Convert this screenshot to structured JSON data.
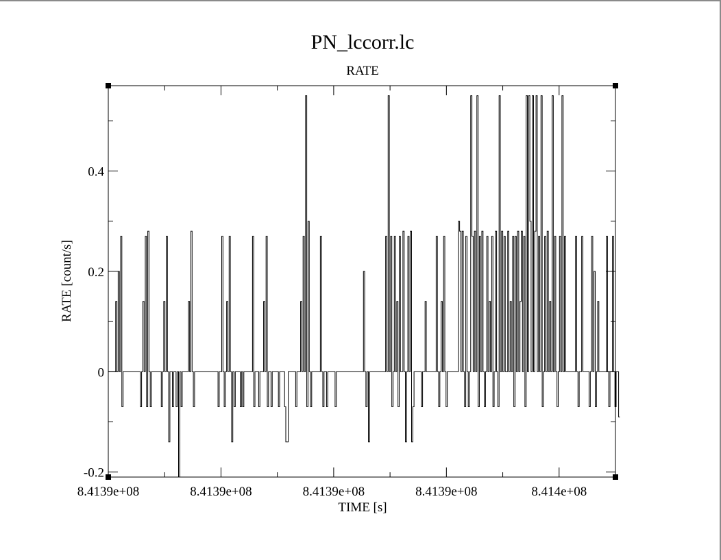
{
  "chart_data": {
    "type": "line",
    "title": "PN_lccorr.lc",
    "subtitle": "RATE",
    "xlabel": "TIME [s]",
    "ylabel": "RATE [count/s]",
    "xlim": [
      841390000,
      841404400
    ],
    "ylim": [
      -0.21,
      0.57
    ],
    "x_tick_values": [
      841390000,
      841393200,
      841396400,
      841399600,
      841402800
    ],
    "x_tick_labels": [
      "8.4139e+08",
      "8.4139e+08",
      "8.4139e+08",
      "8.4139e+08",
      "8.414e+08"
    ],
    "y_tick_values": [
      -0.2,
      0,
      0.2,
      0.4
    ],
    "y_tick_labels": [
      "-0.2",
      "0",
      "0.2",
      "0.4"
    ],
    "grid": false,
    "legend": "none",
    "line_color": "#000000",
    "series": [
      {
        "x_start": 841390000,
        "x_step": 35,
        "values": [
          0,
          0,
          0,
          0,
          0,
          0,
          0.14,
          0,
          0.2,
          0,
          0.27,
          -0.07,
          0,
          0,
          0,
          0,
          0,
          0,
          0,
          0,
          0,
          0,
          0,
          0,
          0,
          0,
          -0.07,
          0,
          0.14,
          0,
          0.27,
          -0.07,
          0.28,
          0,
          -0.07,
          0,
          0,
          0,
          0,
          0,
          0,
          0,
          0,
          -0.07,
          0,
          0.14,
          0,
          0.27,
          0,
          -0.14,
          0,
          0,
          -0.07,
          0,
          0,
          -0.07,
          0,
          -0.21,
          0,
          -0.07,
          0,
          0,
          0,
          0,
          0,
          0.14,
          0,
          0.28,
          0,
          -0.07,
          0,
          0,
          0,
          0,
          0,
          0,
          0,
          0,
          0,
          0,
          0,
          0,
          0,
          0,
          0,
          0,
          0,
          0,
          0,
          -0.07,
          0,
          0,
          0.27,
          0,
          -0.07,
          0,
          0.14,
          0,
          0.27,
          0,
          -0.14,
          0,
          -0.07,
          0,
          0,
          0,
          0,
          -0.07,
          0,
          -0.07,
          0,
          0,
          0,
          0,
          0,
          0,
          0,
          0.27,
          -0.07,
          0,
          0,
          0,
          -0.07,
          0,
          0,
          0,
          0.14,
          0,
          0.27,
          -0.07,
          0,
          0,
          -0.07,
          0,
          0,
          0,
          0,
          0,
          -0.07,
          0,
          0,
          0,
          0,
          -0.07,
          -0.14,
          -0.14,
          0,
          0,
          0,
          0,
          0,
          0,
          -0.07,
          0,
          0,
          0,
          0.14,
          0,
          0.27,
          0,
          0.55,
          -0.07,
          0.3,
          0,
          -0.07,
          0,
          0,
          0,
          0,
          0,
          0,
          0,
          0.27,
          0,
          -0.07,
          0,
          0,
          -0.07,
          0,
          0,
          0,
          0,
          0,
          0,
          -0.07,
          0,
          0,
          0,
          0,
          0,
          0,
          0,
          0,
          0,
          0,
          0,
          0,
          0,
          0,
          0,
          0,
          0,
          0,
          0,
          0,
          0,
          0,
          0.2,
          0,
          -0.07,
          0,
          -0.14,
          0,
          0,
          0,
          0,
          0,
          0,
          0,
          0,
          0,
          0,
          0,
          0,
          0,
          0.27,
          0,
          0.55,
          0,
          0.27,
          -0.07,
          0,
          0.27,
          0,
          0.14,
          -0.07,
          0.27,
          0,
          0,
          0.28,
          0,
          -0.14,
          0,
          0.27,
          0,
          0.28,
          -0.14,
          -0.07,
          0,
          0,
          0,
          0,
          0,
          0,
          -0.07,
          0,
          0,
          0.14,
          0,
          0,
          0,
          0,
          0,
          0,
          0,
          0,
          0.27,
          0,
          -0.07,
          0,
          0.14,
          0,
          0.27,
          0,
          -0.07,
          0,
          0,
          0,
          0,
          0,
          0,
          0,
          0,
          0,
          0.3,
          0.28,
          0,
          0.28,
          0,
          -0.07,
          0.27,
          0,
          -0.07,
          0,
          0.55,
          0.27,
          0,
          0.28,
          0,
          0.55,
          -0.07,
          0.27,
          0,
          0.28,
          0,
          -0.07,
          0,
          0.27,
          0,
          0.14,
          0,
          0.27,
          -0.07,
          0,
          0.28,
          0,
          -0.07,
          0.55,
          0,
          0.28,
          0,
          0.27,
          0,
          0,
          0.28,
          0,
          0.14,
          0,
          0.27,
          -0.07,
          0.27,
          0,
          0.28,
          0,
          0.14,
          0.28,
          0,
          0.27,
          -0.07,
          0.55,
          0,
          0.55,
          0.3,
          0,
          0.55,
          0,
          0.28,
          0.55,
          0,
          0.27,
          0,
          0.55,
          -0.07,
          0,
          0.27,
          0,
          0.28,
          0,
          0.14,
          0,
          0.55,
          0,
          0.27,
          0,
          -0.07,
          0,
          0.27,
          0,
          0.55,
          0,
          0.27,
          0,
          0,
          0,
          0,
          0,
          0,
          0,
          0,
          0.27,
          0,
          -0.07,
          0,
          0,
          0.27,
          0,
          0,
          0,
          0,
          0,
          -0.07,
          0,
          0.27,
          0,
          0.2,
          -0.07,
          0,
          0.14,
          0,
          0,
          0,
          0,
          0,
          0,
          0.27,
          0,
          -0.07,
          0,
          0,
          0.27,
          0,
          -0.07,
          0,
          0,
          -0.09
        ]
      }
    ]
  }
}
